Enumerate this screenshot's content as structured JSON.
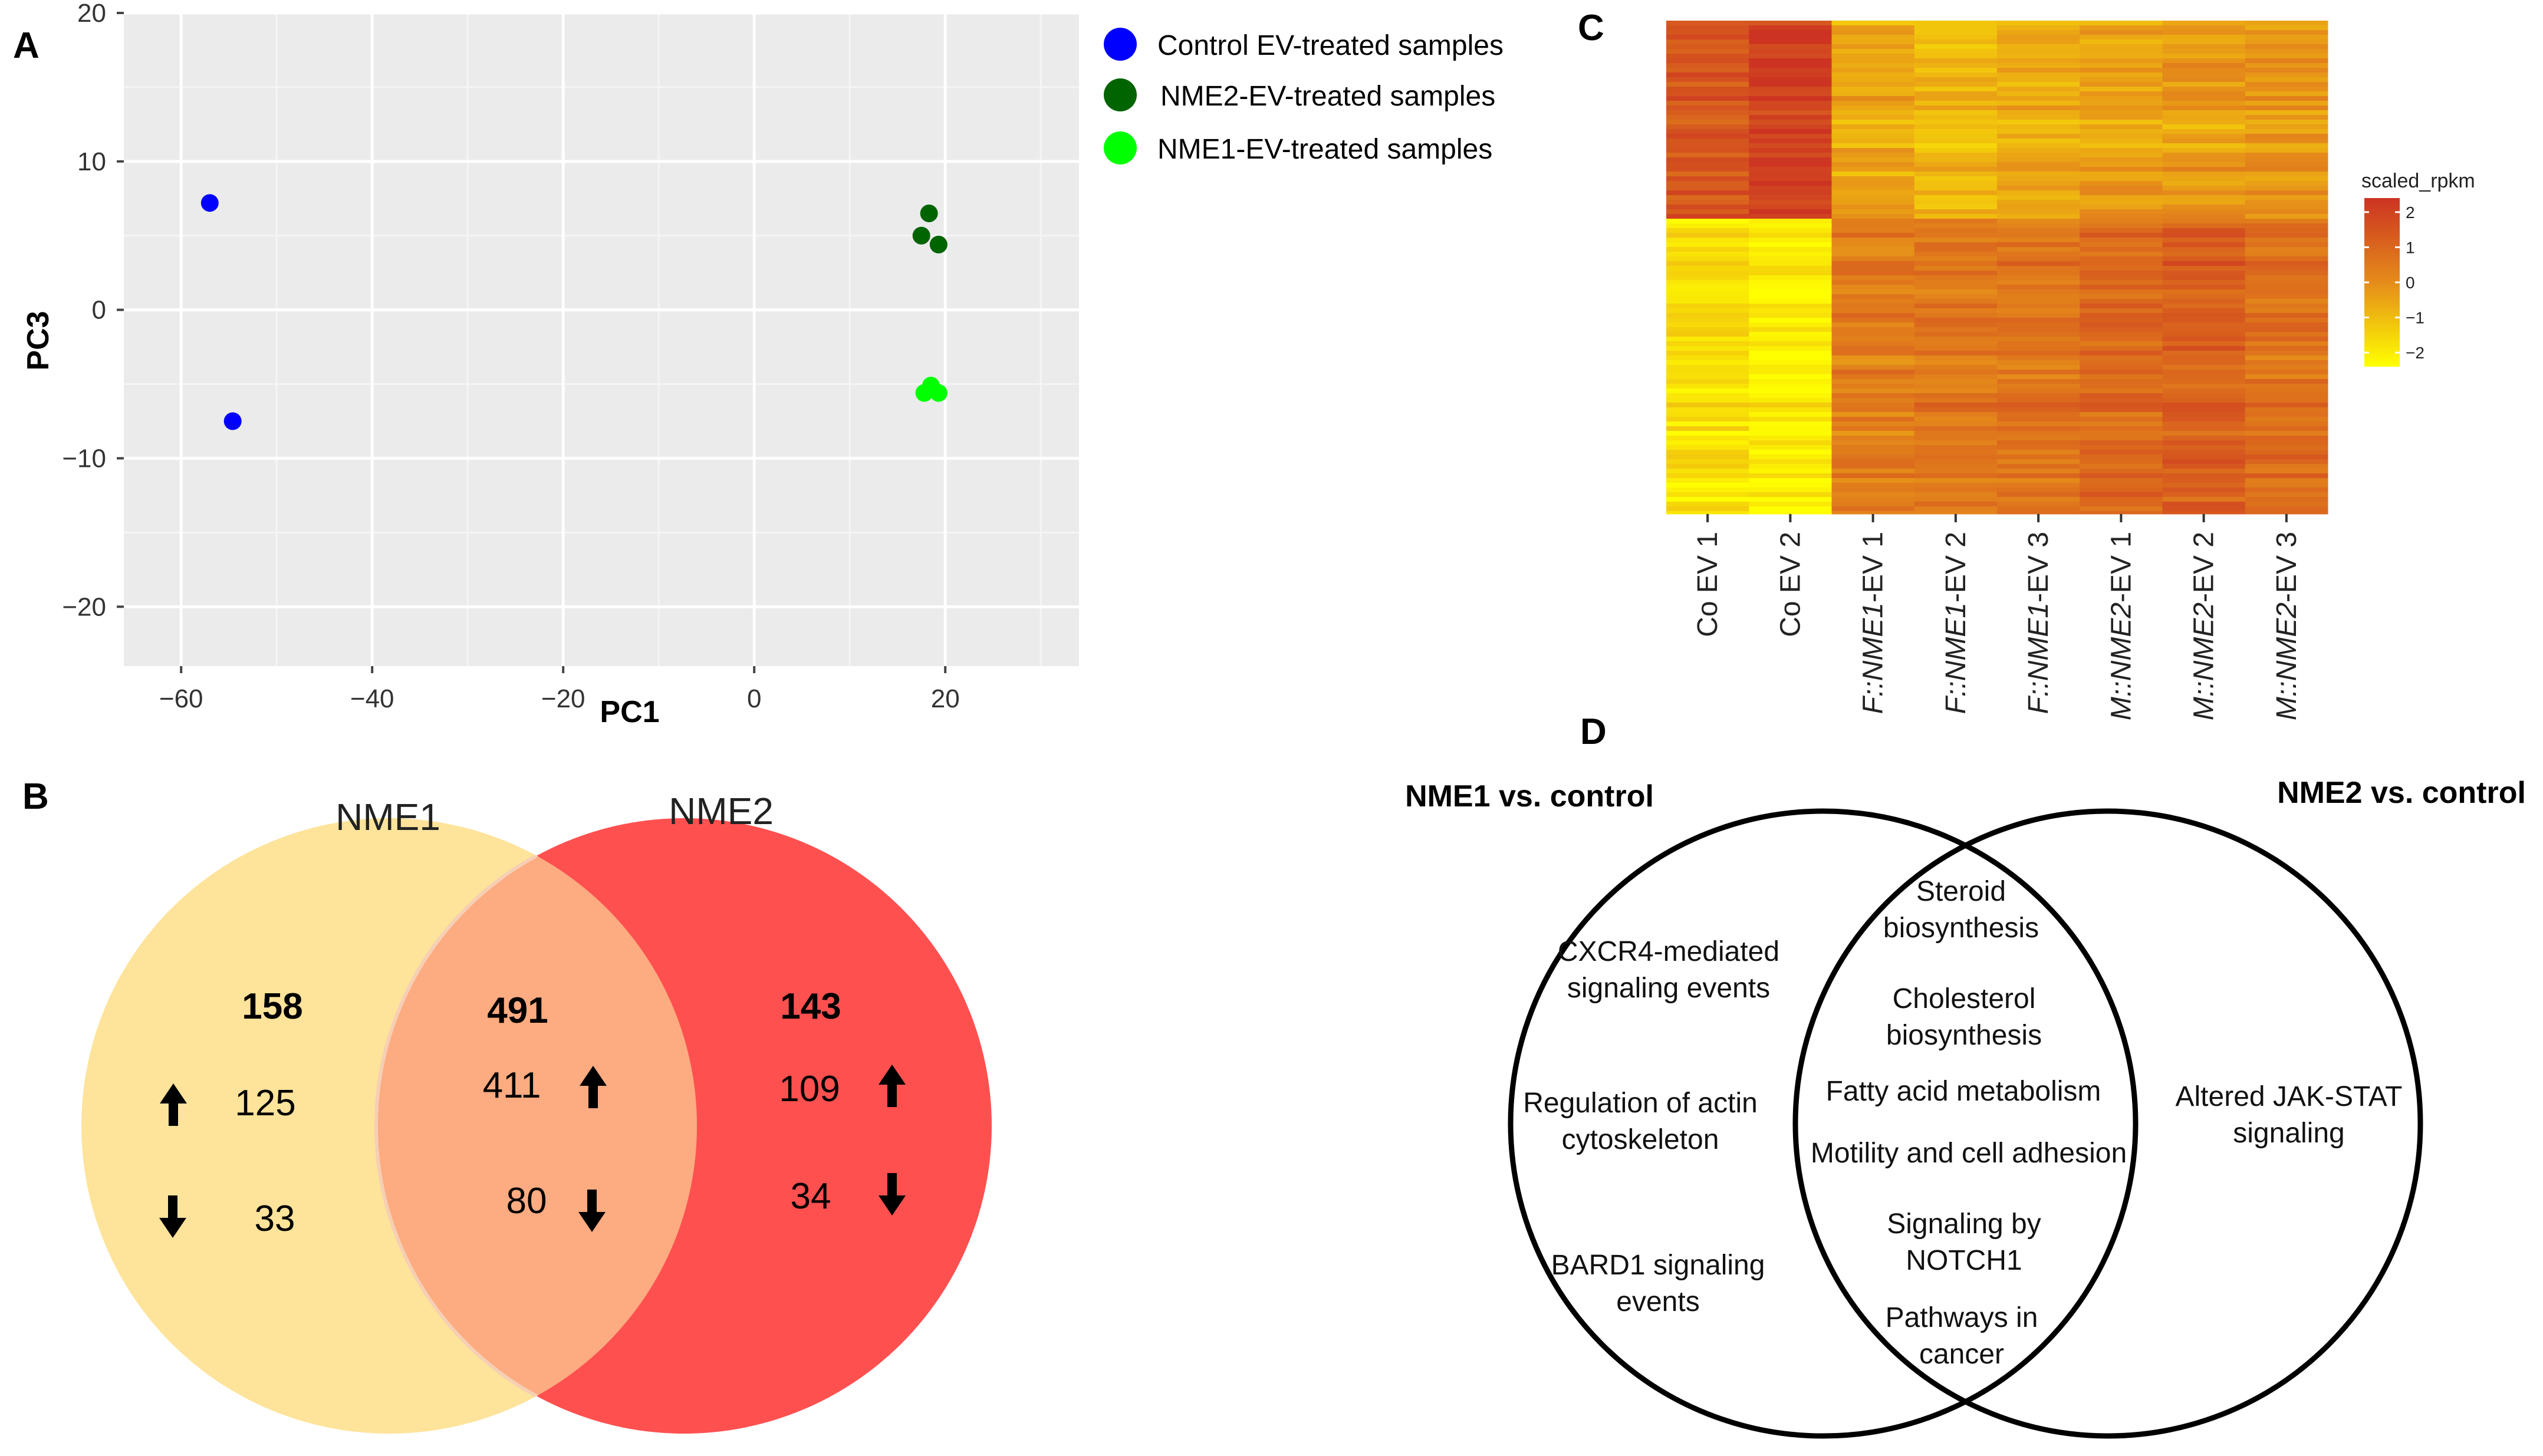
{
  "colors": {
    "control": "#0000ff",
    "nme2": "#006400",
    "nme1": "#00ff00",
    "venn_nme1": "#fee39a",
    "venn_nme2": "#ff5050",
    "venn_overlap": "#fdab80",
    "heat_low": "#ffff00",
    "heat_mid": "#e58c1a",
    "heat_high": "#cc3322",
    "panel_bg": "#ebebeb"
  },
  "panels": {
    "a": "A",
    "b": "B",
    "c": "C",
    "d": "D"
  },
  "chart_data": [
    {
      "type": "scatter",
      "panel": "A",
      "xlabel": "PC1",
      "ylabel": "PC3",
      "xlim": [
        -66,
        34
      ],
      "ylim": [
        -24,
        20
      ],
      "x_ticks": [
        -60,
        -40,
        -20,
        0,
        20
      ],
      "x_tick_labels": [
        "−60",
        "−40",
        "−20",
        "0",
        "20"
      ],
      "y_ticks": [
        20,
        10,
        0,
        -10,
        -20
      ],
      "y_tick_labels": [
        "20",
        "10",
        "0",
        "−10",
        "−20"
      ],
      "grid": true,
      "legend_position": "right",
      "series": [
        {
          "name": "Control EV-treated samples",
          "color_key": "control",
          "points": [
            [
              -57,
              7.2
            ],
            [
              -54.6,
              -7.5
            ]
          ]
        },
        {
          "name": "NME2-EV-treated samples",
          "color_key": "nme2",
          "points": [
            [
              18.3,
              6.5
            ],
            [
              17.5,
              5.0
            ],
            [
              19.3,
              4.4
            ]
          ]
        },
        {
          "name": "NME1-EV-treated samples",
          "color_key": "nme1",
          "points": [
            [
              18.5,
              -5.1
            ],
            [
              17.8,
              -5.6
            ],
            [
              19.3,
              -5.6
            ]
          ]
        }
      ]
    },
    {
      "type": "venn",
      "panel": "B",
      "sets": [
        {
          "name": "NME1",
          "total": "158",
          "up": "125",
          "down": "33",
          "color_key": "venn_nme1"
        },
        {
          "name": "NME2",
          "total": "143",
          "up": "109",
          "down": "34",
          "color_key": "venn_nme2"
        }
      ],
      "overlap": {
        "total": "491",
        "up": "411",
        "down": "80",
        "color_key": "venn_overlap"
      }
    },
    {
      "type": "heatmap",
      "panel": "C",
      "columns": [
        "Co EV 1",
        "Co EV 2",
        "F::NME1-EV 1",
        "F::NME1-EV 2",
        "F::NME1-EV 3",
        "M::NME2-EV 1",
        "M::NME2-EV 2",
        "M::NME2-EV 3"
      ],
      "column_labels": [
        {
          "plain": "Co EV 1",
          "prefix": "",
          "gene": "",
          "suffix": ""
        },
        {
          "plain": "Co EV 2",
          "prefix": "",
          "gene": "",
          "suffix": ""
        },
        {
          "plain": "",
          "prefix": "F::",
          "gene": "NME1",
          "suffix": "-EV 1"
        },
        {
          "plain": "",
          "prefix": "F::",
          "gene": "NME1",
          "suffix": "-EV 2"
        },
        {
          "plain": "",
          "prefix": "F::",
          "gene": "NME1",
          "suffix": "-EV 3"
        },
        {
          "plain": "",
          "prefix": "M::",
          "gene": "NME2",
          "suffix": "-EV 1"
        },
        {
          "plain": "",
          "prefix": "M::",
          "gene": "NME2",
          "suffix": "-EV 2"
        },
        {
          "plain": "",
          "prefix": "M::",
          "gene": "NME2",
          "suffix": "-EV 3"
        }
      ],
      "row_clusters": [
        {
          "fraction_of_rows": 0.4,
          "values": [
            1.4,
            2.0,
            -0.6,
            -1.0,
            -0.7,
            -0.5,
            -0.4,
            -0.3
          ]
        },
        {
          "fraction_of_rows": 0.6,
          "values": [
            -1.8,
            -2.1,
            0.4,
            0.5,
            0.6,
            0.9,
            1.2,
            0.8
          ]
        }
      ],
      "legend": {
        "title": "scaled_rpkm",
        "ticks": [
          2,
          1,
          0,
          -1,
          -2
        ],
        "tick_labels": [
          "2",
          "1",
          "0",
          "−1",
          "−2"
        ],
        "range": [
          -2.4,
          2.4
        ]
      }
    },
    {
      "type": "venn",
      "panel": "D",
      "sets": [
        {
          "name": "NME1 vs. control",
          "items": [
            [
              "CXCR4-mediated",
              "signaling events"
            ],
            [
              "Regulation of actin",
              "cytoskeleton"
            ],
            [
              "BARD1 signaling",
              "events"
            ]
          ]
        },
        {
          "name": "NME2 vs. control",
          "items": [
            [
              "Altered JAK-STAT",
              "signaling"
            ]
          ]
        }
      ],
      "overlap": {
        "items": [
          [
            "Steroid",
            "biosynthesis"
          ],
          [
            "Cholesterol",
            "biosynthesis"
          ],
          [
            "Fatty acid metabolism"
          ],
          [
            "Motility  and cell adhesion"
          ],
          [
            "Signaling by",
            "NOTCH1"
          ],
          [
            "Pathways in",
            "cancer"
          ]
        ]
      }
    }
  ]
}
